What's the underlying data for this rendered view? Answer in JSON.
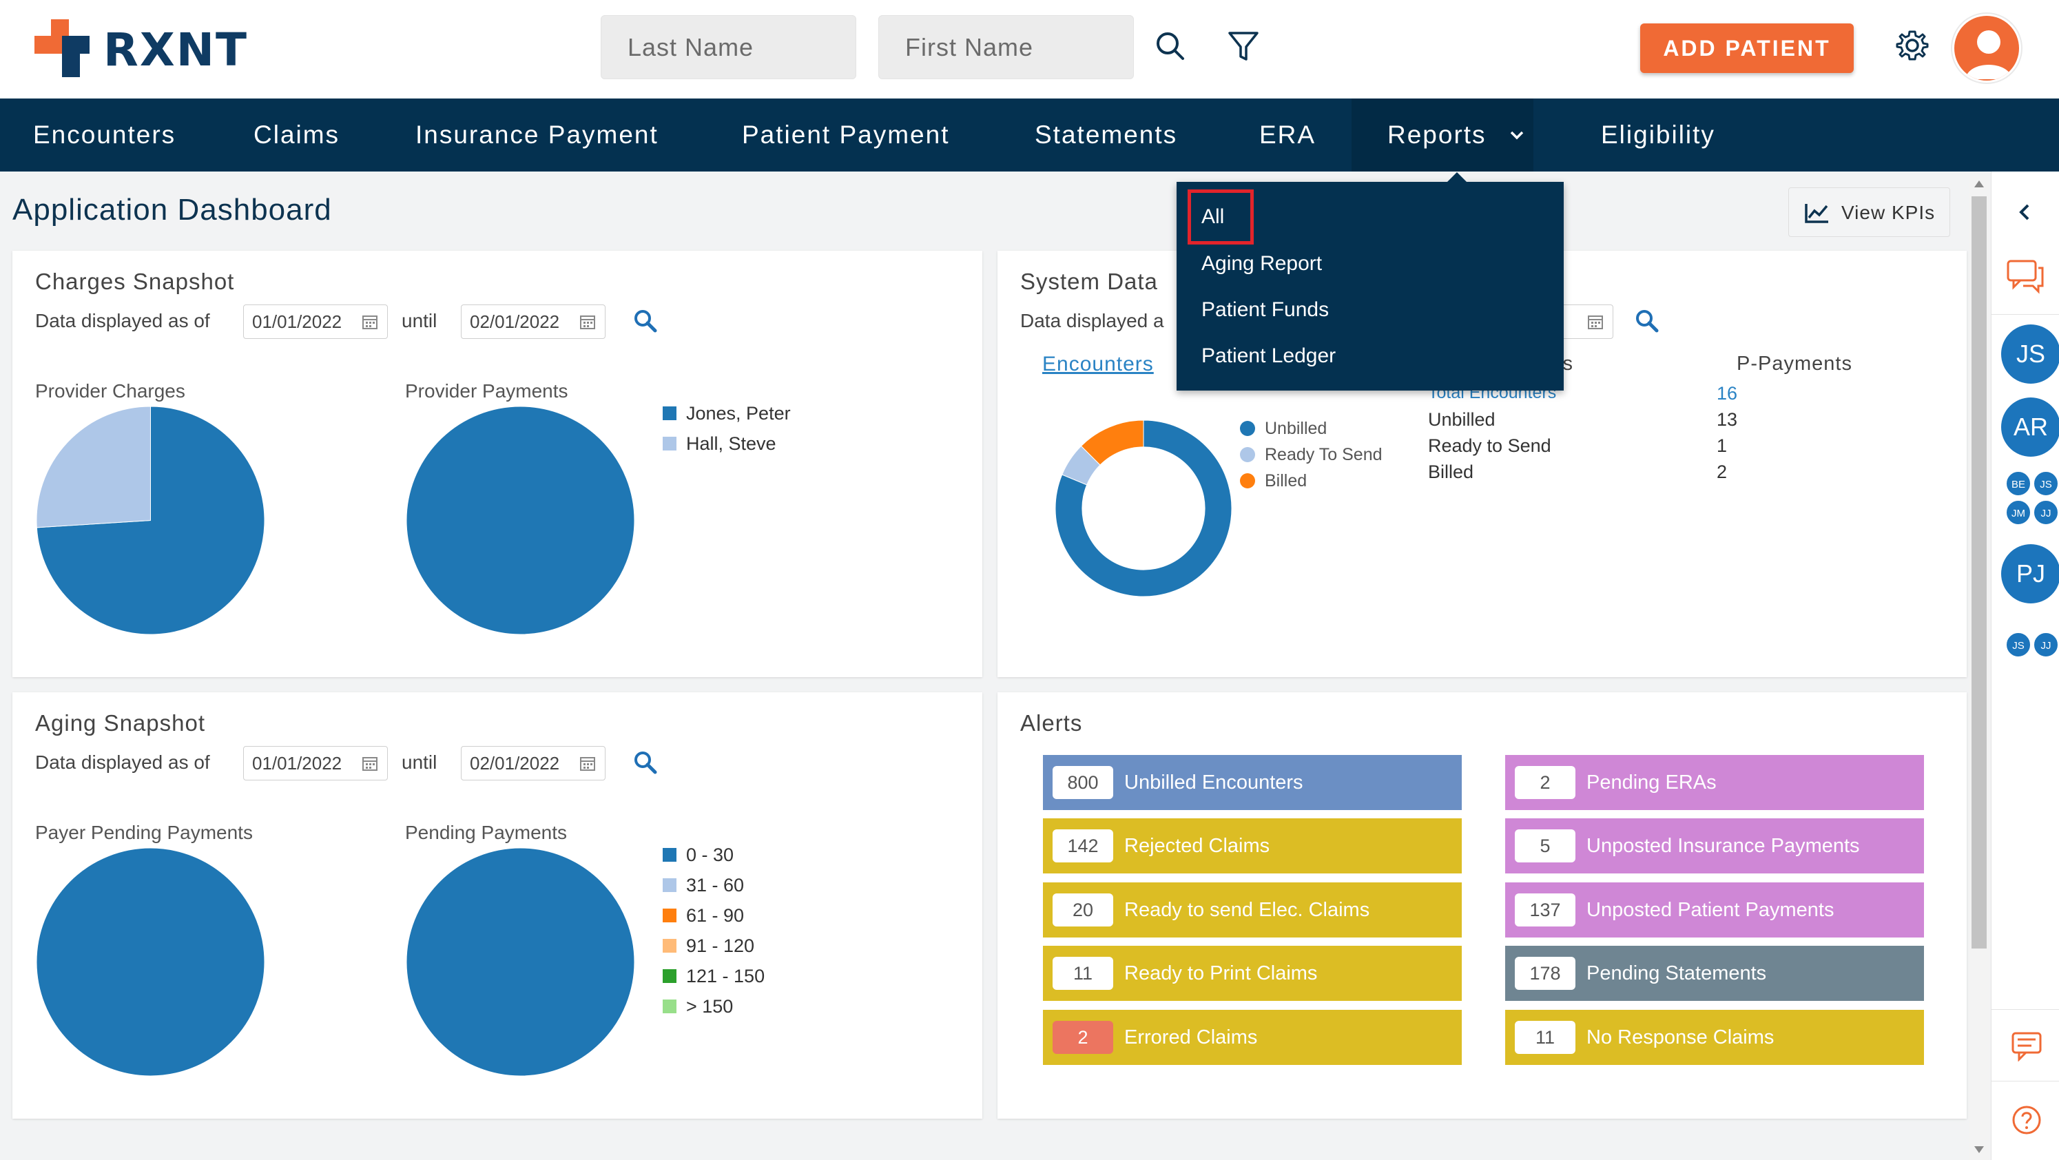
{
  "header": {
    "logo_text": "RXNT",
    "last_name_placeholder": "Last Name",
    "first_name_placeholder": "First Name",
    "add_patient_label": "ADD PATIENT"
  },
  "nav": {
    "items": [
      {
        "label": "Encounters"
      },
      {
        "label": "Claims"
      },
      {
        "label": "Insurance Payment"
      },
      {
        "label": "Patient Payment"
      },
      {
        "label": "Statements"
      },
      {
        "label": "ERA"
      },
      {
        "label": "Reports"
      },
      {
        "label": "Eligibility"
      }
    ]
  },
  "reports_menu": {
    "items": [
      {
        "label": "All"
      },
      {
        "label": "Aging Report"
      },
      {
        "label": "Patient Funds"
      },
      {
        "label": "Patient Ledger"
      }
    ]
  },
  "page": {
    "title": "Application Dashboard",
    "view_kpis_label": "View KPIs"
  },
  "charges": {
    "title": "Charges Snapshot",
    "as_of_label": "Data displayed as of",
    "from_date": "01/01/2022",
    "until_label": "until",
    "to_date": "02/01/2022",
    "provider_charges_label": "Provider Charges",
    "provider_payments_label": "Provider Payments",
    "legend": [
      {
        "name": "Jones, Peter",
        "color": "#1f77b4"
      },
      {
        "name": "Hall, Steve",
        "color": "#aec7e8"
      }
    ]
  },
  "system": {
    "title": "System Data",
    "as_of_label": "Data displayed a",
    "date_fragment": "2",
    "tab_encounters": "Encounters",
    "col_payments_fragment": "ments",
    "col_p_payments": "P-Payments",
    "legend": [
      {
        "name": "Unbilled",
        "color": "#1f77b4"
      },
      {
        "name": "Ready To Send",
        "color": "#aec7e8"
      },
      {
        "name": "Billed",
        "color": "#ff7f0e"
      }
    ],
    "rows": [
      {
        "label": "Total Encounters",
        "value": "16"
      },
      {
        "label": "Unbilled",
        "value": "13"
      },
      {
        "label": "Ready to Send",
        "value": "1"
      },
      {
        "label": "Billed",
        "value": "2"
      }
    ]
  },
  "aging": {
    "title": "Aging Snapshot",
    "as_of_label": "Data displayed as of",
    "from_date": "01/01/2022",
    "until_label": "until",
    "to_date": "02/01/2022",
    "payer_pending_label": "Payer Pending Payments",
    "pending_label": "Pending Payments",
    "legend": [
      {
        "name": "0 - 30",
        "color": "#1f77b4"
      },
      {
        "name": "31 - 60",
        "color": "#aec7e8"
      },
      {
        "name": "61 - 90",
        "color": "#ff7f0e"
      },
      {
        "name": "91 - 120",
        "color": "#ffbb78"
      },
      {
        "name": "121 - 150",
        "color": "#2ca02c"
      },
      {
        "name": "> 150",
        "color": "#98df8a"
      }
    ]
  },
  "alerts": {
    "title": "Alerts",
    "left": [
      {
        "count": "800",
        "label": "Unbilled Encounters",
        "color": "#6b8fc4"
      },
      {
        "count": "142",
        "label": "Rejected Claims",
        "color": "#dcbd24"
      },
      {
        "count": "20",
        "label": "Ready to send Elec. Claims",
        "color": "#dcbd24"
      },
      {
        "count": "11",
        "label": "Ready to Print Claims",
        "color": "#dcbd24"
      },
      {
        "count": "2",
        "label": "Errored Claims",
        "color": "#dcbd24"
      }
    ],
    "right": [
      {
        "count": "2",
        "label": "Pending ERAs",
        "color": "#cf87d6"
      },
      {
        "count": "5",
        "label": "Unposted Insurance Payments",
        "color": "#cf87d6"
      },
      {
        "count": "137",
        "label": "Unposted Patient Payments",
        "color": "#cf87d6"
      },
      {
        "count": "178",
        "label": "Pending Statements",
        "color": "#6f8592"
      },
      {
        "count": "11",
        "label": "No Response Claims",
        "color": "#dcbd24"
      }
    ]
  },
  "rail": {
    "avatars": [
      {
        "initials": "JS"
      },
      {
        "initials": "AR"
      },
      {
        "initials": "BE"
      },
      {
        "initials": "JS"
      },
      {
        "initials": "JM"
      },
      {
        "initials": "JJ"
      },
      {
        "initials": "PJ"
      },
      {
        "initials": "JS"
      },
      {
        "initials": "JJ"
      }
    ]
  },
  "chart_data": [
    {
      "type": "pie",
      "title": "Provider Charges",
      "categories": [
        "Jones, Peter",
        "Hall, Steve"
      ],
      "values": [
        74,
        26
      ]
    },
    {
      "type": "pie",
      "title": "Provider Payments",
      "categories": [
        "Jones, Peter",
        "Hall, Steve"
      ],
      "values": [
        100,
        0
      ]
    },
    {
      "type": "pie",
      "title": "Encounters",
      "categories": [
        "Unbilled",
        "Ready To Send",
        "Billed"
      ],
      "values": [
        13,
        1,
        2
      ]
    },
    {
      "type": "pie",
      "title": "Payer Pending Payments",
      "categories": [
        "0 - 30",
        "31 - 60",
        "61 - 90",
        "91 - 120",
        "121 - 150",
        "> 150"
      ],
      "values": [
        100,
        0,
        0,
        0,
        0,
        0
      ]
    },
    {
      "type": "pie",
      "title": "Pending Payments",
      "categories": [
        "0 - 30",
        "31 - 60",
        "61 - 90",
        "91 - 120",
        "121 - 150",
        "> 150"
      ],
      "values": [
        100,
        0,
        0,
        0,
        0,
        0
      ]
    }
  ]
}
